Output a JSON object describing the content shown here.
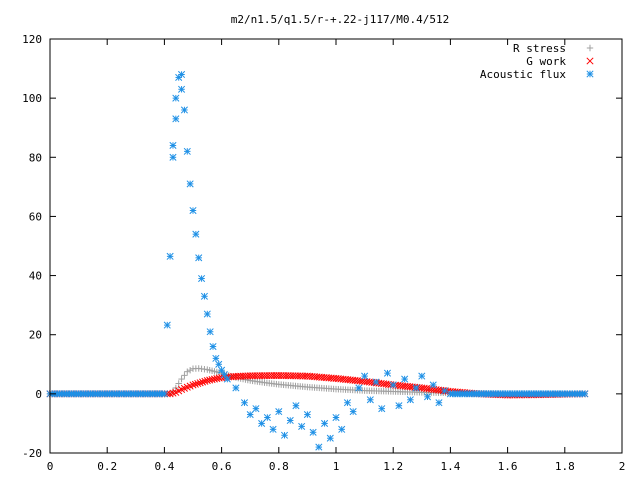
{
  "chart_data": {
    "type": "scatter",
    "title": "m2/n1.5/q1.5/r-+.22-j117/M0.4/512",
    "xlabel": "",
    "ylabel": "",
    "xlim": [
      0,
      2
    ],
    "ylim": [
      -20,
      120
    ],
    "xticks": [
      "0",
      "0.2",
      "0.4",
      "0.6",
      "0.8",
      "1",
      "1.2",
      "1.4",
      "1.6",
      "1.8",
      "2"
    ],
    "yticks": [
      "-20",
      "0",
      "20",
      "40",
      "60",
      "80",
      "100",
      "120"
    ],
    "grid": false,
    "legend_position": "top-right",
    "series": [
      {
        "name": "R stress",
        "color": "#a0a0a0",
        "marker": "plus",
        "points": [
          [
            0.0,
            0
          ],
          [
            0.1,
            0
          ],
          [
            0.2,
            0
          ],
          [
            0.3,
            0
          ],
          [
            0.4,
            0
          ],
          [
            0.42,
            0
          ],
          [
            0.44,
            2
          ],
          [
            0.46,
            5
          ],
          [
            0.48,
            7.5
          ],
          [
            0.5,
            8.5
          ],
          [
            0.52,
            8.6
          ],
          [
            0.55,
            8.2
          ],
          [
            0.6,
            7
          ],
          [
            0.65,
            5.5
          ],
          [
            0.7,
            4.5
          ],
          [
            0.75,
            3.8
          ],
          [
            0.8,
            3.2
          ],
          [
            0.9,
            2.3
          ],
          [
            1.0,
            1.6
          ],
          [
            1.1,
            1.1
          ],
          [
            1.2,
            0.8
          ],
          [
            1.3,
            0.5
          ],
          [
            1.4,
            0.3
          ],
          [
            1.5,
            0.2
          ],
          [
            1.6,
            0.1
          ],
          [
            1.7,
            0.1
          ],
          [
            1.8,
            0
          ],
          [
            1.87,
            0
          ]
        ]
      },
      {
        "name": "G work",
        "color": "#ff0000",
        "marker": "cross",
        "points": [
          [
            0.0,
            0
          ],
          [
            0.1,
            0
          ],
          [
            0.2,
            0
          ],
          [
            0.3,
            0
          ],
          [
            0.4,
            0
          ],
          [
            0.42,
            0
          ],
          [
            0.44,
            0.5
          ],
          [
            0.46,
            1.5
          ],
          [
            0.5,
            3
          ],
          [
            0.55,
            4.5
          ],
          [
            0.6,
            5.5
          ],
          [
            0.65,
            5.9
          ],
          [
            0.7,
            6.1
          ],
          [
            0.8,
            6.2
          ],
          [
            0.9,
            6
          ],
          [
            1.0,
            5.2
          ],
          [
            1.1,
            4.2
          ],
          [
            1.2,
            3
          ],
          [
            1.3,
            2
          ],
          [
            1.4,
            0.8
          ],
          [
            1.5,
            0
          ],
          [
            1.6,
            -0.4
          ],
          [
            1.7,
            -0.3
          ],
          [
            1.8,
            -0.1
          ],
          [
            1.87,
            0
          ]
        ]
      },
      {
        "name": "Acoustic flux",
        "color": "#1e90e6",
        "marker": "star",
        "points": [
          [
            0.0,
            0
          ],
          [
            0.1,
            0
          ],
          [
            0.2,
            0
          ],
          [
            0.3,
            0
          ],
          [
            0.4,
            0
          ],
          [
            0.42,
            46.5
          ],
          [
            0.43,
            84
          ],
          [
            0.43,
            80
          ],
          [
            0.44,
            93
          ],
          [
            0.44,
            100
          ],
          [
            0.45,
            107
          ],
          [
            0.46,
            108
          ],
          [
            0.46,
            103
          ],
          [
            0.47,
            96
          ],
          [
            0.48,
            82
          ],
          [
            0.49,
            71
          ],
          [
            0.5,
            62
          ],
          [
            0.51,
            54
          ],
          [
            0.52,
            46
          ],
          [
            0.53,
            39
          ],
          [
            0.54,
            33
          ],
          [
            0.55,
            27
          ],
          [
            0.56,
            21
          ],
          [
            0.57,
            16
          ],
          [
            0.58,
            12
          ],
          [
            0.6,
            8
          ],
          [
            0.62,
            5
          ],
          [
            0.65,
            2
          ],
          [
            0.68,
            -3
          ],
          [
            0.7,
            -7
          ],
          [
            0.72,
            -5
          ],
          [
            0.74,
            -10
          ],
          [
            0.76,
            -8
          ],
          [
            0.78,
            -12
          ],
          [
            0.8,
            -6
          ],
          [
            0.82,
            -14
          ],
          [
            0.84,
            -9
          ],
          [
            0.86,
            -4
          ],
          [
            0.88,
            -11
          ],
          [
            0.9,
            -7
          ],
          [
            0.92,
            -13
          ],
          [
            0.94,
            -18
          ],
          [
            0.96,
            -10
          ],
          [
            0.98,
            -15
          ],
          [
            1.0,
            -8
          ],
          [
            1.02,
            -12
          ],
          [
            1.04,
            -3
          ],
          [
            1.06,
            -6
          ],
          [
            1.08,
            2
          ],
          [
            1.1,
            6
          ],
          [
            1.12,
            -2
          ],
          [
            1.14,
            4
          ],
          [
            1.16,
            -5
          ],
          [
            1.18,
            7
          ],
          [
            1.2,
            3
          ],
          [
            1.22,
            -4
          ],
          [
            1.24,
            5
          ],
          [
            1.26,
            -2
          ],
          [
            1.28,
            2
          ],
          [
            1.3,
            6
          ],
          [
            1.32,
            -1
          ],
          [
            1.34,
            3
          ],
          [
            1.36,
            -3
          ],
          [
            1.38,
            1
          ],
          [
            1.4,
            0
          ],
          [
            1.5,
            0
          ],
          [
            1.6,
            0
          ],
          [
            1.7,
            0
          ],
          [
            1.8,
            0
          ],
          [
            1.87,
            0
          ]
        ]
      }
    ]
  }
}
